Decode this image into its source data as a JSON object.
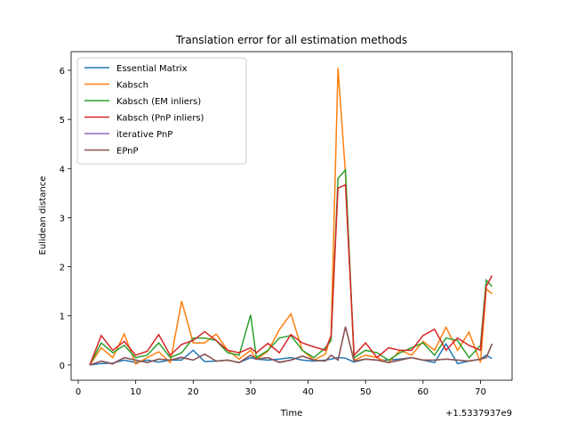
{
  "chart_data": {
    "type": "line",
    "title": "Translation error for all estimation methods",
    "x_label": "Time",
    "y_label": "Eulidean distance",
    "x_offset_label": "+1.5337937e9",
    "x": [
      2,
      4,
      6,
      8,
      10,
      12,
      14,
      16,
      18,
      20,
      22,
      24,
      26,
      28,
      30,
      31,
      33,
      35,
      37,
      39,
      41,
      43,
      44,
      45.2,
      46.5,
      48,
      50,
      52,
      54,
      56,
      58,
      60,
      62,
      64,
      66,
      68,
      70,
      71,
      72
    ],
    "series": [
      {
        "name": "Essential Matrix",
        "color": "#1f77b4",
        "values": [
          0,
          0.03,
          0.04,
          0.1,
          0.05,
          0.1,
          0.06,
          0.1,
          0.1,
          0.3,
          0.07,
          0.08,
          0.1,
          0.05,
          0.15,
          0.12,
          0.1,
          0.12,
          0.15,
          0.1,
          0.08,
          0.1,
          0.12,
          0.15,
          0.14,
          0.06,
          0.12,
          0.1,
          0.1,
          0.12,
          0.15,
          0.1,
          0.05,
          0.43,
          0.03,
          0.08,
          0.12,
          0.2,
          0.13
        ]
      },
      {
        "name": "Kabsch",
        "color": "#ff7f0e",
        "values": [
          0,
          0.35,
          0.15,
          0.63,
          0.02,
          0.15,
          0.27,
          0.05,
          1.3,
          0.45,
          0.45,
          0.63,
          0.3,
          0.12,
          0.3,
          0.12,
          0.28,
          0.72,
          1.04,
          0.3,
          0.1,
          0.22,
          0.6,
          6.05,
          3.9,
          0.1,
          0.2,
          0.15,
          0.05,
          0.3,
          0.2,
          0.48,
          0.3,
          0.77,
          0.3,
          0.67,
          0.05,
          1.55,
          1.45
        ]
      },
      {
        "name": "Kabsch (EM inliers)",
        "color": "#2ca02c",
        "values": [
          0,
          0.45,
          0.25,
          0.4,
          0.15,
          0.2,
          0.45,
          0.15,
          0.25,
          0.55,
          0.55,
          0.5,
          0.25,
          0.2,
          1.02,
          0.15,
          0.3,
          0.55,
          0.6,
          0.3,
          0.15,
          0.35,
          0.5,
          3.8,
          3.97,
          0.15,
          0.3,
          0.25,
          0.1,
          0.25,
          0.35,
          0.45,
          0.2,
          0.55,
          0.5,
          0.15,
          0.4,
          1.73,
          1.6
        ]
      },
      {
        "name": "Kabsch (PnP inliers)",
        "color": "#d62728",
        "values": [
          0,
          0.6,
          0.3,
          0.48,
          0.2,
          0.28,
          0.62,
          0.2,
          0.42,
          0.5,
          0.68,
          0.5,
          0.3,
          0.25,
          0.35,
          0.25,
          0.44,
          0.25,
          0.62,
          0.45,
          0.37,
          0.3,
          0.6,
          3.6,
          3.67,
          0.2,
          0.45,
          0.15,
          0.35,
          0.3,
          0.3,
          0.6,
          0.73,
          0.3,
          0.55,
          0.4,
          0.3,
          1.6,
          1.82
        ]
      },
      {
        "name": "iterative PnP",
        "color": "#9467bd",
        "values": [
          0,
          0.08,
          0.03,
          0.15,
          0.1,
          0.05,
          0.12,
          0.1,
          0.16,
          0.1,
          0.22,
          0.08,
          0.1,
          0.05,
          0.2,
          0.12,
          0.15,
          0.06,
          0.1,
          0.18,
          0.1,
          0.08,
          0.2,
          0.1,
          0.78,
          0.08,
          0.12,
          0.1,
          0.05,
          0.1,
          0.15,
          0.1,
          0.1,
          0.12,
          0.1,
          0.08,
          0.12,
          0.15,
          0.43
        ]
      },
      {
        "name": "EPnP",
        "color": "#8c564b",
        "values": [
          0,
          0.08,
          0.02,
          0.15,
          0.1,
          0.05,
          0.12,
          0.1,
          0.15,
          0.1,
          0.22,
          0.08,
          0.1,
          0.05,
          0.2,
          0.12,
          0.15,
          0.05,
          0.1,
          0.18,
          0.1,
          0.08,
          0.2,
          0.1,
          0.78,
          0.08,
          0.12,
          0.1,
          0.05,
          0.1,
          0.15,
          0.1,
          0.1,
          0.12,
          0.1,
          0.08,
          0.12,
          0.15,
          0.43
        ]
      }
    ],
    "xlim": [
      -1.24,
      75.5
    ],
    "ylim": [
      -0.31,
      6.38
    ],
    "xticks": [
      0,
      10,
      20,
      30,
      40,
      50,
      60,
      70
    ],
    "yticks": [
      0,
      1,
      2,
      3,
      4,
      5,
      6
    ],
    "legend": "upper left"
  }
}
